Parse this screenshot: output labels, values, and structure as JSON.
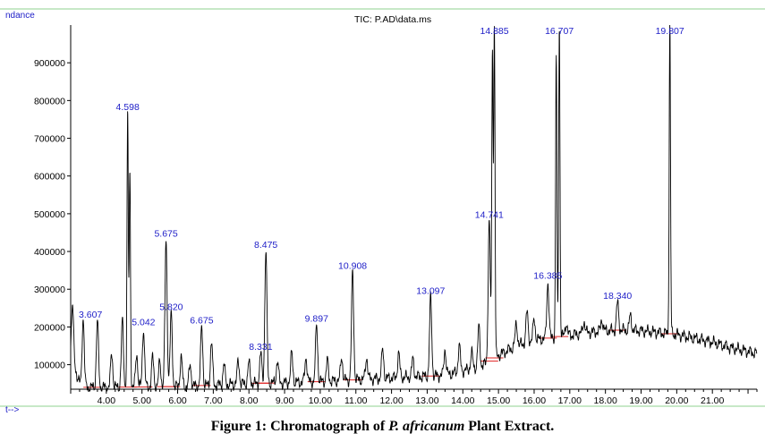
{
  "chart_data": {
    "type": "line",
    "title": "TIC: P.AD\\data.ms",
    "ylabel": "ndance",
    "xlabel": "Time-->",
    "xlabel_visible": "t-->",
    "xlim": [
      3.0,
      22.25
    ],
    "ylim": [
      35000,
      1000000
    ],
    "yticks": [
      100000,
      200000,
      300000,
      400000,
      500000,
      600000,
      700000,
      800000,
      900000
    ],
    "ytick_labels": [
      "100000",
      "200000",
      "300000",
      "400000",
      "500000",
      "600000",
      "700000",
      "800000",
      "900000"
    ],
    "xticks": [
      4.0,
      5.0,
      6.0,
      7.0,
      8.0,
      9.0,
      10.0,
      11.0,
      12.0,
      13.0,
      14.0,
      15.0,
      16.0,
      17.0,
      18.0,
      19.0,
      20.0,
      21.0
    ],
    "xtick_labels": [
      "4.00",
      "5.00",
      "6.00",
      "7.00",
      "8.00",
      "9.00",
      "10.00",
      "11.00",
      "12.00",
      "13.00",
      "14.00",
      "15.00",
      "16.00",
      "17.00",
      "18.00",
      "19.00",
      "20.00",
      "21.00"
    ],
    "grid": false,
    "series": [
      {
        "name": "TIC",
        "baseline": [
          [
            3.0,
            120000
          ],
          [
            3.3,
            40000
          ],
          [
            4.0,
            40000
          ],
          [
            6.0,
            42000
          ],
          [
            8.0,
            50000
          ],
          [
            10.0,
            55000
          ],
          [
            12.0,
            65000
          ],
          [
            13.5,
            72000
          ],
          [
            14.5,
            95000
          ],
          [
            15.0,
            125000
          ],
          [
            15.5,
            150000
          ],
          [
            16.0,
            165000
          ],
          [
            16.5,
            172000
          ],
          [
            17.0,
            178000
          ],
          [
            17.5,
            185000
          ],
          [
            18.0,
            190000
          ],
          [
            18.5,
            192000
          ],
          [
            19.0,
            190000
          ],
          [
            19.5,
            185000
          ],
          [
            20.0,
            180000
          ],
          [
            20.5,
            170000
          ],
          [
            21.0,
            160000
          ],
          [
            21.5,
            145000
          ],
          [
            22.0,
            135000
          ],
          [
            22.25,
            130000
          ]
        ],
        "peaks": [
          [
            3.05,
            260000
          ],
          [
            3.35,
            225000
          ],
          [
            3.75,
            215000
          ],
          [
            4.15,
            130000
          ],
          [
            4.45,
            215000
          ],
          [
            4.598,
            765000
          ],
          [
            4.66,
            610000
          ],
          [
            4.85,
            130000
          ],
          [
            5.042,
            195000
          ],
          [
            5.3,
            120000
          ],
          [
            5.5,
            110000
          ],
          [
            5.675,
            430000
          ],
          [
            5.82,
            235000
          ],
          [
            6.1,
            120000
          ],
          [
            6.35,
            100000
          ],
          [
            6.675,
            200000
          ],
          [
            6.95,
            160000
          ],
          [
            7.3,
            100000
          ],
          [
            7.7,
            110000
          ],
          [
            8.0,
            105000
          ],
          [
            8.331,
            130000
          ],
          [
            8.475,
            400000
          ],
          [
            8.8,
            110000
          ],
          [
            9.2,
            130000
          ],
          [
            9.6,
            120000
          ],
          [
            9.897,
            205000
          ],
          [
            10.2,
            110000
          ],
          [
            10.6,
            120000
          ],
          [
            10.908,
            345000
          ],
          [
            11.3,
            120000
          ],
          [
            11.75,
            140000
          ],
          [
            12.2,
            130000
          ],
          [
            12.6,
            115000
          ],
          [
            13.097,
            278000
          ],
          [
            13.5,
            140000
          ],
          [
            13.9,
            150000
          ],
          [
            14.25,
            130000
          ],
          [
            14.45,
            200000
          ],
          [
            14.741,
            480000
          ],
          [
            14.83,
            930000
          ],
          [
            14.885,
            1000000
          ],
          [
            15.5,
            210000
          ],
          [
            15.8,
            240000
          ],
          [
            16.0,
            220000
          ],
          [
            16.385,
            318000
          ],
          [
            16.62,
            920000
          ],
          [
            16.707,
            1000000
          ],
          [
            16.9,
            210000
          ],
          [
            17.4,
            215000
          ],
          [
            17.9,
            220000
          ],
          [
            18.34,
            265000
          ],
          [
            18.7,
            230000
          ],
          [
            19.807,
            1000000
          ],
          [
            20.3,
            150000
          ],
          [
            21.1,
            140000
          ]
        ]
      }
    ],
    "peak_labels": [
      {
        "x": 3.607,
        "text": "3.607"
      },
      {
        "x": 4.598,
        "text": "4.598",
        "y": 765000
      },
      {
        "x": 5.042,
        "text": "5.042",
        "y": 195000
      },
      {
        "x": 5.675,
        "text": "5.675",
        "y": 430000
      },
      {
        "x": 5.82,
        "text": "5.820",
        "y": 235000
      },
      {
        "x": 6.675,
        "text": "6.675",
        "y": 200000
      },
      {
        "x": 8.331,
        "text": "8.331",
        "y": 130000
      },
      {
        "x": 8.475,
        "text": "8.475",
        "y": 400000
      },
      {
        "x": 9.897,
        "text": "9.897",
        "y": 205000
      },
      {
        "x": 10.908,
        "text": "10.908",
        "y": 345000
      },
      {
        "x": 13.097,
        "text": "13.097",
        "y": 278000
      },
      {
        "x": 14.741,
        "text": "14.741",
        "y": 480000
      },
      {
        "x": 14.885,
        "text": "14.885",
        "y": 1000000
      },
      {
        "x": 16.385,
        "text": "16.385",
        "y": 318000
      },
      {
        "x": 16.707,
        "text": "16.707",
        "y": 1000000
      },
      {
        "x": 18.34,
        "text": "18.340",
        "y": 265000
      },
      {
        "x": 19.807,
        "text": "19.807",
        "y": 1000000
      }
    ],
    "colors": {
      "trace": "#000000",
      "labels": "#2020c8",
      "integration": "#e02020",
      "frame": "#8fd18f"
    }
  },
  "caption": {
    "prefix": "Figure 1: Chromatograph of ",
    "species": "P. africanum",
    "suffix": " Plant Extract."
  }
}
